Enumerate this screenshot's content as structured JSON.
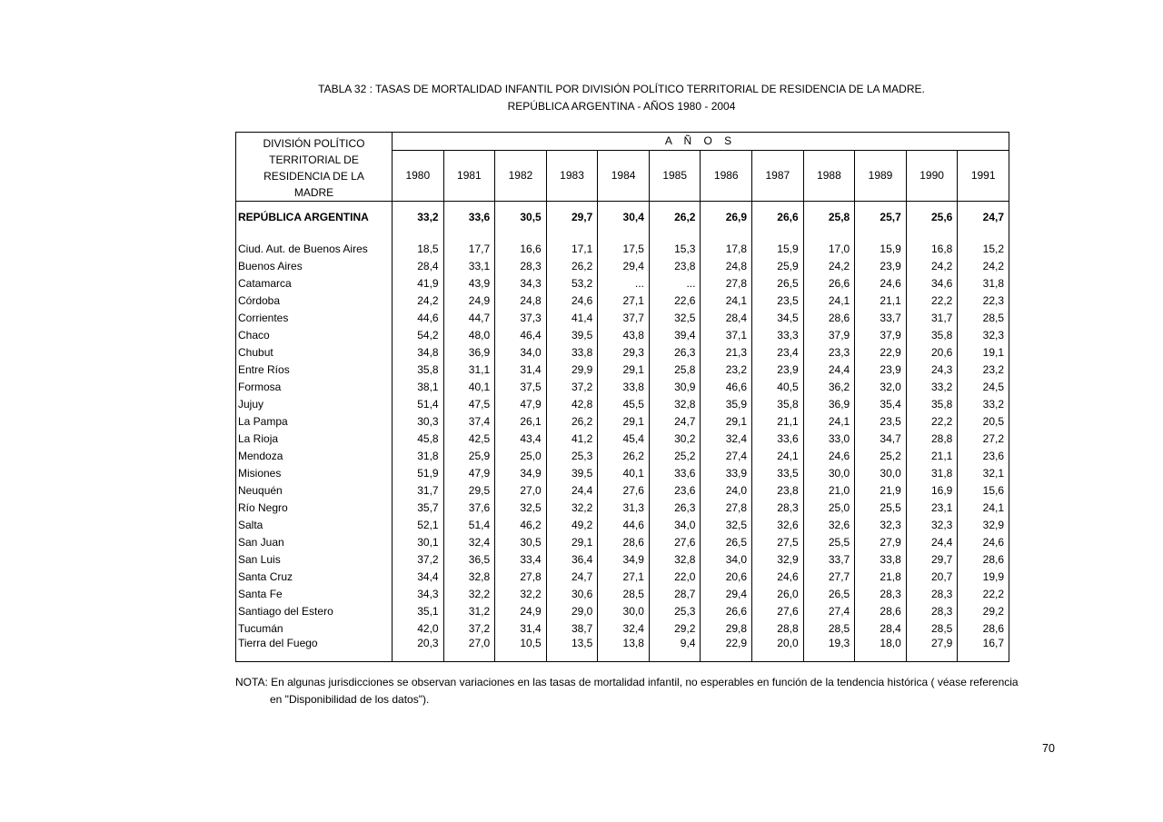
{
  "title_line1": "TABLA  32 : TASAS DE  MORTALIDAD INFANTIL POR DIVISIÓN POLÍTICO TERRITORIAL DE RESIDENCIA DE LA MADRE.",
  "title_line2": "REPÚBLICA ARGENTINA - AÑOS 1980 - 2004",
  "table": {
    "col_header_lines": [
      "DIVISIÓN POLÍTICO",
      "TERRITORIAL DE",
      "RESIDENCIA DE LA",
      "MADRE"
    ],
    "years_label": "A Ñ O S",
    "years": [
      "1980",
      "1981",
      "1982",
      "1983",
      "1984",
      "1985",
      "1986",
      "1987",
      "1988",
      "1989",
      "1990",
      "1991"
    ],
    "rows": [
      {
        "name": "REPÚBLICA ARGENTINA",
        "bold": true,
        "values": [
          "33,2",
          "33,6",
          "30,5",
          "29,7",
          "30,4",
          "26,2",
          "26,9",
          "26,6",
          "25,8",
          "25,7",
          "25,6",
          "24,7"
        ]
      },
      {
        "spacer": true
      },
      {
        "name": "Ciud. Aut. de  Buenos Aires",
        "values": [
          "18,5",
          "17,7",
          "16,6",
          "17,1",
          "17,5",
          "15,3",
          "17,8",
          "15,9",
          "17,0",
          "15,9",
          "16,8",
          "15,2"
        ]
      },
      {
        "name": "Buenos Aires",
        "values": [
          "28,4",
          "33,1",
          "28,3",
          "26,2",
          "29,4",
          "23,8",
          "24,8",
          "25,9",
          "24,2",
          "23,9",
          "24,2",
          "24,2"
        ]
      },
      {
        "name": "Catamarca",
        "values": [
          "41,9",
          "43,9",
          "34,3",
          "53,2",
          "...",
          "...",
          "27,8",
          "26,5",
          "26,6",
          "24,6",
          "34,6",
          "31,8"
        ]
      },
      {
        "name": "Córdoba",
        "values": [
          "24,2",
          "24,9",
          "24,8",
          "24,6",
          "27,1",
          "22,6",
          "24,1",
          "23,5",
          "24,1",
          "21,1",
          "22,2",
          "22,3"
        ]
      },
      {
        "name": "Corrientes",
        "values": [
          "44,6",
          "44,7",
          "37,3",
          "41,4",
          "37,7",
          "32,5",
          "28,4",
          "34,5",
          "28,6",
          "33,7",
          "31,7",
          "28,5"
        ]
      },
      {
        "name": "Chaco",
        "values": [
          "54,2",
          "48,0",
          "46,4",
          "39,5",
          "43,8",
          "39,4",
          "37,1",
          "33,3",
          "37,9",
          "37,9",
          "35,8",
          "32,3"
        ]
      },
      {
        "name": "Chubut",
        "values": [
          "34,8",
          "36,9",
          "34,0",
          "33,8",
          "29,3",
          "26,3",
          "21,3",
          "23,4",
          "23,3",
          "22,9",
          "20,6",
          "19,1"
        ]
      },
      {
        "name": "Entre Ríos",
        "values": [
          "35,8",
          "31,1",
          "31,4",
          "29,9",
          "29,1",
          "25,8",
          "23,2",
          "23,9",
          "24,4",
          "23,9",
          "24,3",
          "23,2"
        ]
      },
      {
        "name": "Formosa",
        "values": [
          "38,1",
          "40,1",
          "37,5",
          "37,2",
          "33,8",
          "30,9",
          "46,6",
          "40,5",
          "36,2",
          "32,0",
          "33,2",
          "24,5"
        ]
      },
      {
        "name": "Jujuy",
        "values": [
          "51,4",
          "47,5",
          "47,9",
          "42,8",
          "45,5",
          "32,8",
          "35,9",
          "35,8",
          "36,9",
          "35,4",
          "35,8",
          "33,2"
        ]
      },
      {
        "name": "La Pampa",
        "values": [
          "30,3",
          "37,4",
          "26,1",
          "26,2",
          "29,1",
          "24,7",
          "29,1",
          "21,1",
          "24,1",
          "23,5",
          "22,2",
          "20,5"
        ]
      },
      {
        "name": "La Rioja",
        "values": [
          "45,8",
          "42,5",
          "43,4",
          "41,2",
          "45,4",
          "30,2",
          "32,4",
          "33,6",
          "33,0",
          "34,7",
          "28,8",
          "27,2"
        ]
      },
      {
        "name": "Mendoza",
        "values": [
          "31,8",
          "25,9",
          "25,0",
          "25,3",
          "26,2",
          "25,2",
          "27,4",
          "24,1",
          "24,6",
          "25,2",
          "21,1",
          "23,6"
        ]
      },
      {
        "name": "Misiones",
        "values": [
          "51,9",
          "47,9",
          "34,9",
          "39,5",
          "40,1",
          "33,6",
          "33,9",
          "33,5",
          "30,0",
          "30,0",
          "31,8",
          "32,1"
        ]
      },
      {
        "name": "Neuquén",
        "values": [
          "31,7",
          "29,5",
          "27,0",
          "24,4",
          "27,6",
          "23,6",
          "24,0",
          "23,8",
          "21,0",
          "21,9",
          "16,9",
          "15,6"
        ]
      },
      {
        "name": "Río Negro",
        "values": [
          "35,7",
          "37,6",
          "32,5",
          "32,2",
          "31,3",
          "26,3",
          "27,8",
          "28,3",
          "25,0",
          "25,5",
          "23,1",
          "24,1"
        ]
      },
      {
        "name": "Salta",
        "values": [
          "52,1",
          "51,4",
          "46,2",
          "49,2",
          "44,6",
          "34,0",
          "32,5",
          "32,6",
          "32,6",
          "32,3",
          "32,3",
          "32,9"
        ]
      },
      {
        "name": "San Juan",
        "values": [
          "30,1",
          "32,4",
          "30,5",
          "29,1",
          "28,6",
          "27,6",
          "26,5",
          "27,5",
          "25,5",
          "27,9",
          "24,4",
          "24,6"
        ]
      },
      {
        "name": "San Luis",
        "values": [
          "37,2",
          "36,5",
          "33,4",
          "36,4",
          "34,9",
          "32,8",
          "34,0",
          "32,9",
          "33,7",
          "33,8",
          "29,7",
          "28,6"
        ]
      },
      {
        "name": "Santa Cruz",
        "values": [
          "34,4",
          "32,8",
          "27,8",
          "24,7",
          "27,1",
          "22,0",
          "20,6",
          "24,6",
          "27,7",
          "21,8",
          "20,7",
          "19,9"
        ]
      },
      {
        "name": "Santa Fe",
        "values": [
          "34,3",
          "32,2",
          "32,2",
          "30,6",
          "28,5",
          "28,7",
          "29,4",
          "26,0",
          "26,5",
          "28,3",
          "28,3",
          "22,2"
        ]
      },
      {
        "name": "Santiago del Estero",
        "values": [
          "35,1",
          "31,2",
          "24,9",
          "29,0",
          "30,0",
          "25,3",
          "26,6",
          "27,6",
          "27,4",
          "28,6",
          "28,3",
          "29,2"
        ]
      },
      {
        "name": "Tucumán",
        "values": [
          "42,0",
          "37,2",
          "31,4",
          "38,7",
          "32,4",
          "29,2",
          "29,8",
          "28,8",
          "28,5",
          "28,4",
          "28,5",
          "28,6"
        ]
      },
      {
        "name": "Tierra del Fuego",
        "values": [
          "20,3",
          "27,0",
          "10,5",
          "13,5",
          "13,8",
          "9,4",
          "22,9",
          "20,0",
          "19,3",
          "18,0",
          "27,9",
          "16,7"
        ]
      }
    ]
  },
  "note_line1": "NOTA: En algunas jurisdicciones se observan variaciones en las tasas de mortalidad infantil, no esperables en función de la tendencia histórica ( véase referencia",
  "note_line2": "en \"Disponibilidad de los datos\").",
  "page_number": "70"
}
